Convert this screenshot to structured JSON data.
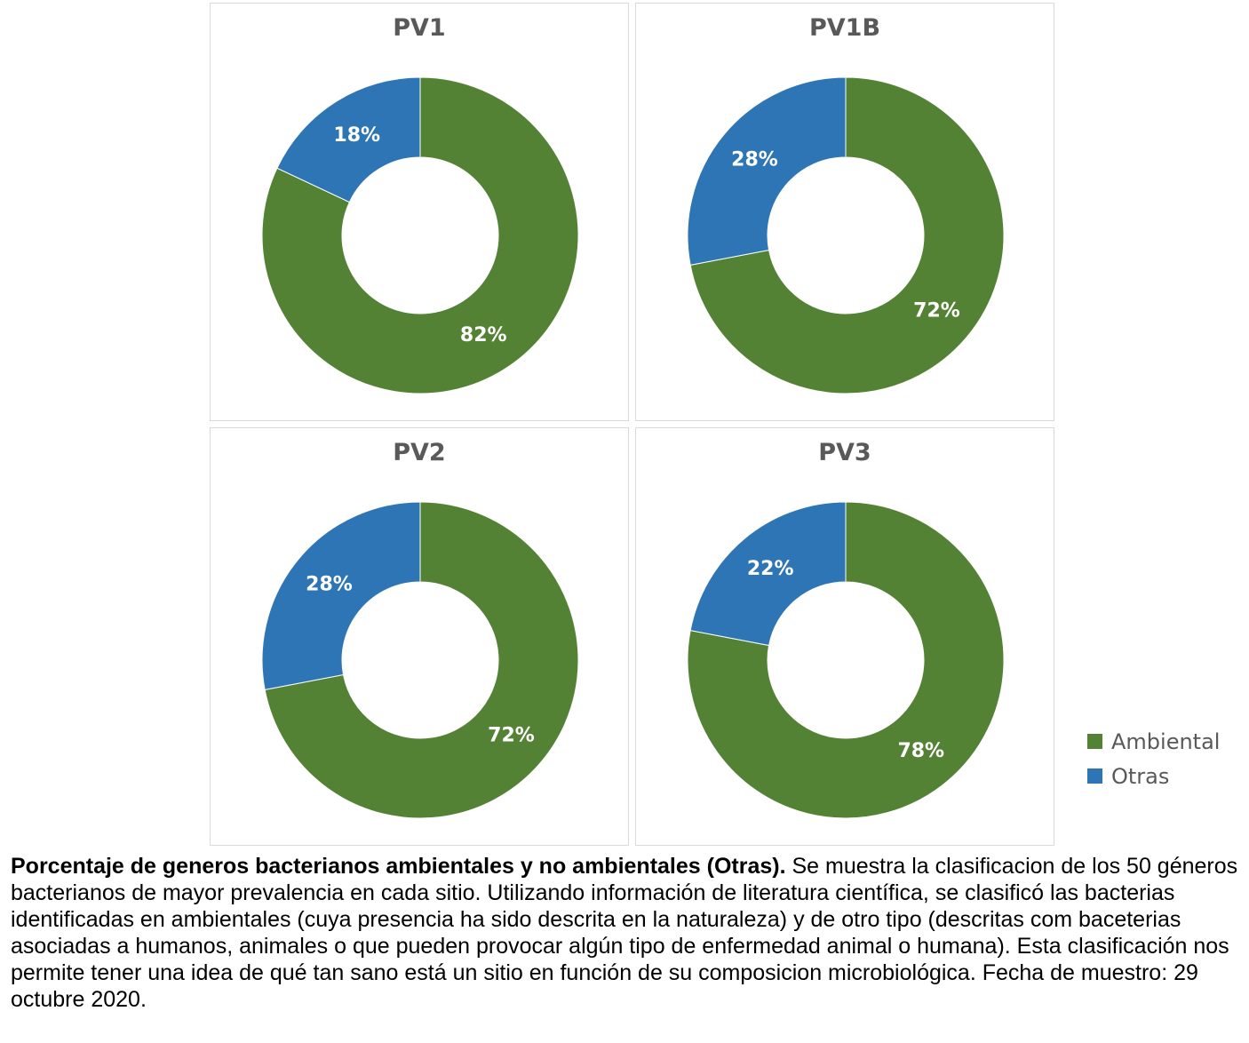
{
  "colors": {
    "Ambiental": "#548235",
    "Otras": "#2E75B6",
    "label_text": "#ffffff",
    "title_text": "#595959",
    "panel_border": "#d9d9d9"
  },
  "legend": {
    "items": [
      {
        "label": "Ambiental",
        "color": "#548235"
      },
      {
        "label": "Otras",
        "color": "#2E75B6"
      }
    ]
  },
  "chart_data": [
    {
      "type": "pie",
      "variant": "donut",
      "title": "PV1",
      "categories": [
        "Ambiental",
        "Otras"
      ],
      "values": [
        82,
        18
      ],
      "labels": [
        "82%",
        "18%"
      ]
    },
    {
      "type": "pie",
      "variant": "donut",
      "title": "PV1B",
      "categories": [
        "Ambiental",
        "Otras"
      ],
      "values": [
        72,
        28
      ],
      "labels": [
        "72%",
        "28%"
      ]
    },
    {
      "type": "pie",
      "variant": "donut",
      "title": "PV2",
      "categories": [
        "Ambiental",
        "Otras"
      ],
      "values": [
        72,
        28
      ],
      "labels": [
        "72%",
        "28%"
      ]
    },
    {
      "type": "pie",
      "variant": "donut",
      "title": "PV3",
      "categories": [
        "Ambiental",
        "Otras"
      ],
      "values": [
        78,
        22
      ],
      "labels": [
        "78%",
        "22%"
      ]
    }
  ],
  "caption": {
    "bold": "Porcentaje de generos bacterianos ambientales y no ambientales (Otras).",
    "text": " Se muestra la clasificacion de los 50 géneros bacterianos de mayor prevalencia en cada sitio. Utilizando información de literatura científica, se clasificó las bacterias identificadas en ambientales (cuya presencia ha sido descrita en la naturaleza) y de otro tipo (descritas com baceterias asociadas a humanos, animales o que pueden provocar algún tipo de enfermedad animal o humana). Esta clasificación nos permite tener una idea de qué tan sano está un sitio en función de su composicion microbiológica. Fecha de muestro: 29 octubre 2020."
  }
}
